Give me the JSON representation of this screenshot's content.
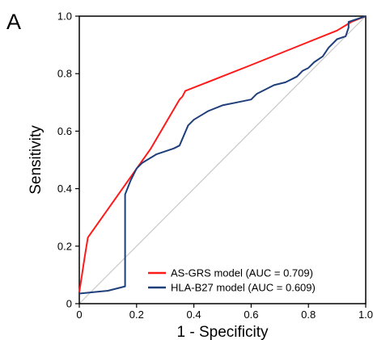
{
  "panel_label": "A",
  "chart_data": {
    "type": "line",
    "xlabel": "1 - Specificity",
    "ylabel": "Sensitivity",
    "xlim": [
      0,
      1
    ],
    "ylim": [
      0,
      1
    ],
    "x_ticks": [
      "0",
      "0.2",
      "0.4",
      "0.6",
      "0.8",
      "1.0"
    ],
    "y_ticks": [
      "0",
      "0.2",
      "0.4",
      "0.6",
      "0.8",
      "1.0"
    ],
    "grid": false,
    "legend_position": "bottom-right",
    "diagonal_reference": true,
    "series": [
      {
        "name": "AS-GRS model (AUC = 0.709)",
        "color": "#ff1a1a",
        "x": [
          0,
          0.02,
          0.03,
          0.25,
          0.35,
          0.36,
          0.37,
          0.6,
          0.8,
          0.9,
          0.95,
          1.0
        ],
        "y": [
          0.04,
          0.17,
          0.23,
          0.54,
          0.71,
          0.72,
          0.74,
          0.83,
          0.91,
          0.95,
          0.98,
          1.0
        ]
      },
      {
        "name": "HLA-B27 model (AUC = 0.609)",
        "color": "#1f3f7a",
        "x": [
          0,
          0.1,
          0.16,
          0.16,
          0.18,
          0.2,
          0.22,
          0.27,
          0.33,
          0.35,
          0.38,
          0.4,
          0.45,
          0.5,
          0.55,
          0.6,
          0.62,
          0.68,
          0.72,
          0.76,
          0.78,
          0.8,
          0.82,
          0.85,
          0.87,
          0.9,
          0.93,
          0.94,
          0.94,
          0.97,
          1.0
        ],
        "y": [
          0.035,
          0.045,
          0.06,
          0.38,
          0.43,
          0.47,
          0.49,
          0.52,
          0.54,
          0.55,
          0.62,
          0.64,
          0.67,
          0.69,
          0.7,
          0.71,
          0.73,
          0.76,
          0.77,
          0.79,
          0.81,
          0.82,
          0.84,
          0.86,
          0.89,
          0.92,
          0.93,
          0.96,
          0.98,
          0.99,
          1.0
        ]
      }
    ]
  }
}
